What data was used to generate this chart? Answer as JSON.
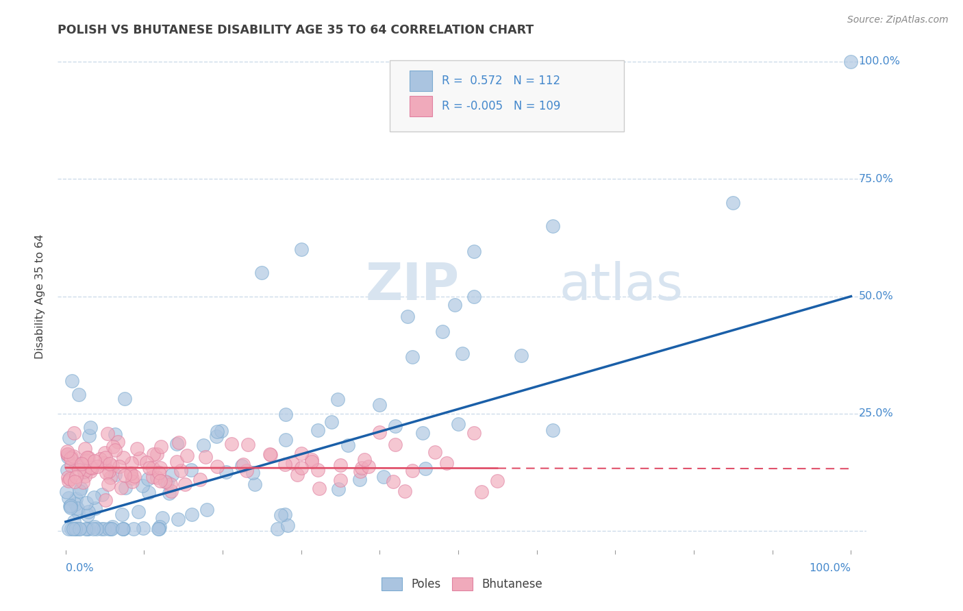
{
  "title": "POLISH VS BHUTANESE DISABILITY AGE 35 TO 64 CORRELATION CHART",
  "source": "Source: ZipAtlas.com",
  "ylabel": "Disability Age 35 to 64",
  "legend_poles_R": " 0.572",
  "legend_poles_N": "112",
  "legend_bhutanese_R": "-0.005",
  "legend_bhutanese_N": "109",
  "poles_color": "#aac4e0",
  "poles_edge_color": "#7aaad0",
  "poles_line_color": "#1a5fa8",
  "bhutanese_color": "#f0aabb",
  "bhutanese_edge_color": "#e080a0",
  "bhutanese_line_color": "#e0506a",
  "watermark_color": "#d8e4f0",
  "background_color": "#ffffff",
  "grid_color": "#c8d8e8",
  "title_color": "#404040",
  "axis_label_color": "#4488cc",
  "legend_text_color": "#4488cc",
  "legend_bg_color": "#f8f8f8",
  "legend_border_color": "#cccccc"
}
